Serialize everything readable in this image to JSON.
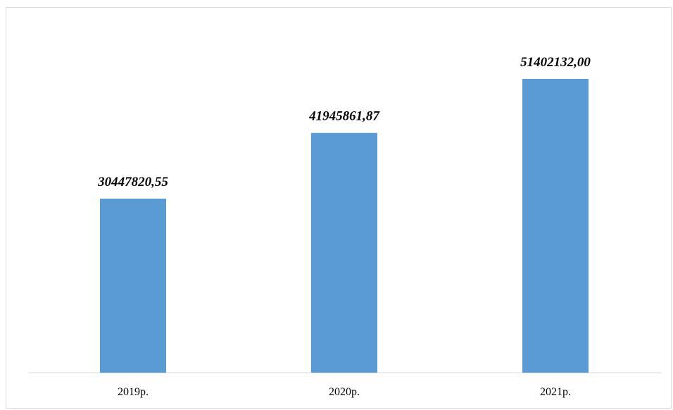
{
  "chart_data": {
    "type": "bar",
    "title": "",
    "xlabel": "",
    "ylabel": "",
    "categories": [
      "2019р.",
      "2020р.",
      "2021р."
    ],
    "values": [
      30447820.55,
      41945861.87,
      51402132.0
    ],
    "data_labels": [
      "30447820,55",
      "41945861,87",
      "51402132,00"
    ],
    "ylim": [
      0,
      60000000
    ],
    "grid": false,
    "legend": "none",
    "bar_color": "#5b9bd5",
    "axis_color": "#d9d9d9"
  }
}
